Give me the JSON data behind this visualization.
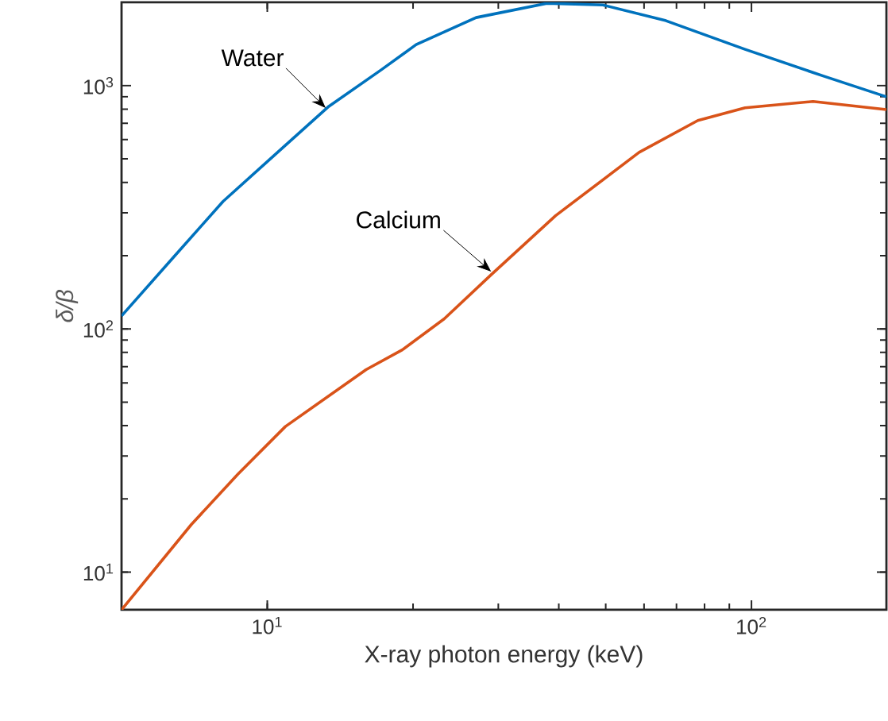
{
  "chart_data": {
    "type": "line",
    "xlabel": "X-ray photon energy (keV)",
    "ylabel": "*δ/β*",
    "log": "xy",
    "grid": false,
    "xlim": [
      5,
      190
    ],
    "ylim": [
      7,
      2200
    ],
    "xticks": [
      {
        "value": 10,
        "label": "10$^{1}$"
      },
      {
        "value": 100,
        "label": "10$^{2}$"
      }
    ],
    "yticks": [
      {
        "value": 10,
        "label": "10$^{1}$"
      },
      {
        "value": 100,
        "label": "10$^{2}$"
      },
      {
        "value": 1000,
        "label": "10$^{3}$"
      }
    ],
    "series": [
      {
        "color": "#0072bd",
        "x": [
          5,
          6.46,
          8.1,
          10.5,
          13.4,
          17.2,
          20.3,
          27,
          37.8,
          49.3,
          66.6,
          97,
          141,
          190
        ],
        "values": [
          113,
          201,
          334,
          532,
          822,
          1162,
          1475,
          1905,
          2180,
          2147,
          1849,
          1410,
          1094,
          900
        ]
      },
      {
        "color": "#d95319",
        "x": [
          5,
          6.97,
          8.7,
          10.9,
          16,
          19,
          23.2,
          29.1,
          39.4,
          58.6,
          77.5,
          97,
          134,
          190
        ],
        "values": [
          7,
          15.7,
          25.3,
          39.7,
          68,
          82,
          110,
          168,
          292,
          532,
          719,
          811,
          861,
          798
        ]
      }
    ],
    "annotations": [
      {
        "text": "Water",
        "x": 13.2,
        "y": 810
      },
      {
        "text": "Calcium",
        "x": 29,
        "y": 172
      }
    ]
  }
}
